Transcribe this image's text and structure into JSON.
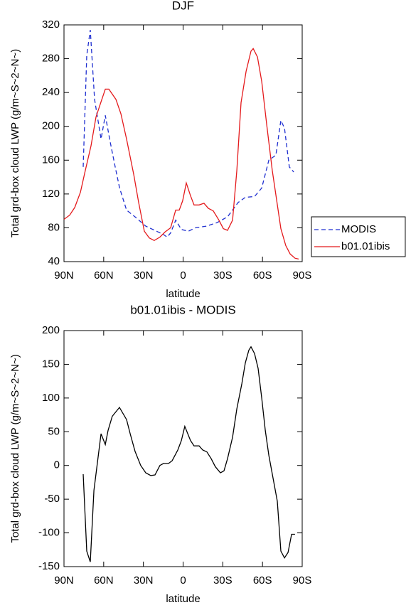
{
  "chart_data": [
    {
      "type": "line",
      "title": "DJF",
      "xlabel": "latitude",
      "ylabel": "Total grd-box cloud LWP (g/m~S~2~N~)",
      "xlim": [
        90,
        -90
      ],
      "xticks": [
        {
          "value": 90,
          "label": "90N"
        },
        {
          "value": 60,
          "label": "60N"
        },
        {
          "value": 30,
          "label": "30N"
        },
        0,
        {
          "value": -30,
          "label": "30S"
        },
        {
          "value": -60,
          "label": "60S"
        },
        {
          "value": -90,
          "label": "90S"
        }
      ],
      "ylim": [
        40,
        320
      ],
      "yticks": [
        40,
        80,
        120,
        160,
        200,
        240,
        280,
        320
      ],
      "legend": "right",
      "series": [
        {
          "name": "MODIS",
          "color": "#1f2fd0",
          "linestyle": "dashed",
          "x": [
            75.5,
            72.8,
            70.1,
            66.9,
            62,
            58.8,
            55,
            51.3,
            48,
            42.7,
            36.3,
            28.2,
            20.1,
            14.8,
            12.1,
            9.4,
            5.6,
            1.3,
            -4,
            -9.4,
            -17.5,
            -25.5,
            -33.6,
            -41.6,
            -47,
            -54,
            -59.4,
            -64.8,
            -70.1,
            -73.9,
            -76.6,
            -80.3,
            -83.6
          ],
          "values": [
            152,
            284,
            314,
            232,
            185,
            213,
            181,
            152,
            127,
            101,
            93,
            82,
            76,
            72,
            69,
            74,
            89,
            78,
            76,
            80,
            82,
            86,
            93,
            110,
            116,
            117,
            127,
            160,
            166,
            207,
            198,
            152,
            146
          ]
        },
        {
          "name": "b01.01ibis",
          "color": "#e41a1c",
          "linestyle": "solid",
          "x": [
            90,
            85.7,
            81.9,
            77.6,
            73.9,
            69.6,
            65.8,
            62,
            58.8,
            56.1,
            50.8,
            47,
            42.7,
            37.3,
            33.6,
            29.3,
            25.5,
            21.8,
            17.5,
            13.7,
            9.4,
            5.6,
            2.9,
            0.3,
            -2.4,
            -5.6,
            -8.3,
            -12.1,
            -15.8,
            -19.1,
            -22.8,
            -27.1,
            -30.4,
            -33.6,
            -37.4,
            -40.6,
            -43.8,
            -47.6,
            -51.3,
            -53,
            -56.2,
            -59.4,
            -63.2,
            -67.4,
            -73.9,
            -77.6,
            -80.9,
            -84.6,
            -87.3
          ],
          "values": [
            90,
            95,
            104,
            122,
            148,
            177,
            211,
            229,
            244,
            244,
            232,
            215,
            185,
            143,
            110,
            76,
            68,
            65,
            69,
            75,
            80,
            101,
            101,
            112,
            133,
            118,
            107,
            107,
            109,
            103,
            100,
            89,
            79,
            77,
            89,
            148,
            228,
            265,
            289,
            292,
            282,
            253,
            202,
            148,
            79,
            59,
            49,
            44,
            43
          ]
        }
      ]
    },
    {
      "type": "line",
      "title": "b01.01ibis - MODIS",
      "xlabel": "latitude",
      "ylabel": "Total grd-box cloud LWP (g/m~S~2~N~)",
      "xlim": [
        90,
        -90
      ],
      "xticks": [
        {
          "value": 90,
          "label": "90N"
        },
        {
          "value": 60,
          "label": "60N"
        },
        {
          "value": 30,
          "label": "30N"
        },
        0,
        {
          "value": -30,
          "label": "30S"
        },
        {
          "value": -60,
          "label": "60S"
        },
        {
          "value": -90,
          "label": "90S"
        }
      ],
      "ylim": [
        -150,
        200
      ],
      "yticks": [
        -150,
        -100,
        -50,
        0,
        50,
        100,
        150,
        200
      ],
      "series": [
        {
          "color": "#000000",
          "linestyle": "solid",
          "x": [
            75.5,
            72.8,
            70.1,
            67.4,
            64.7,
            62,
            58.8,
            56.7,
            53.5,
            48.1,
            42.7,
            40,
            36.3,
            32,
            28.2,
            24.4,
            21.2,
            17.5,
            14.8,
            11,
            8.3,
            4,
            1.3,
            -1.3,
            -5.6,
            -8.3,
            -12.1,
            -14.8,
            -18,
            -21.2,
            -24.4,
            -28.2,
            -30.9,
            -33.6,
            -37.4,
            -40.6,
            -44.4,
            -47,
            -49.7,
            -51.3,
            -54,
            -56.7,
            -59.4,
            -62.1,
            -64.8,
            -71.2,
            -73.9,
            -76.6,
            -79.3,
            -82,
            -84.6
          ],
          "values": [
            -13,
            -127,
            -143,
            -37,
            5,
            47,
            31,
            52,
            73,
            86,
            68,
            47,
            21,
            0,
            -11,
            -15,
            -14,
            0,
            3,
            3,
            7,
            23,
            37,
            58,
            37,
            29,
            29,
            23,
            20,
            10,
            -2,
            -11,
            -8,
            10,
            42,
            84,
            121,
            152,
            171,
            176,
            166,
            144,
            100,
            52,
            15,
            -53,
            -127,
            -137,
            -129,
            -102,
            -102
          ]
        }
      ]
    }
  ]
}
